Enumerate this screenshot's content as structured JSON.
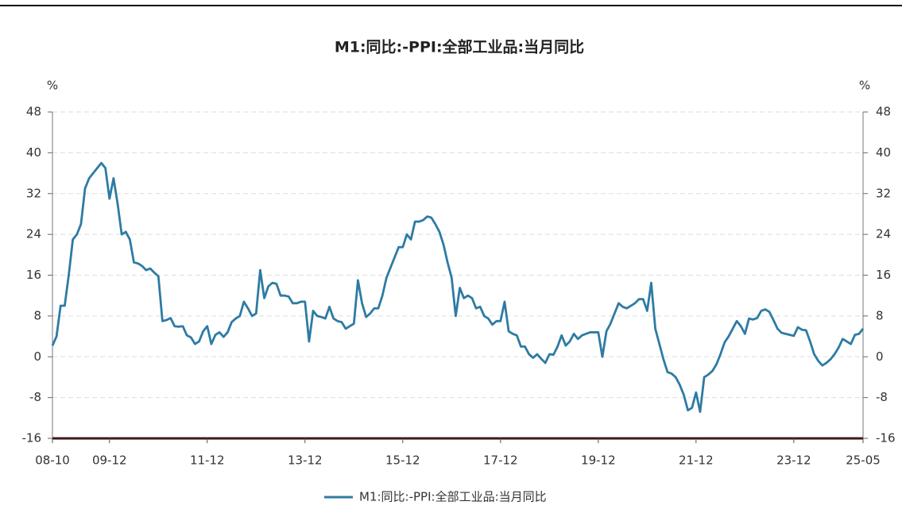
{
  "chart_data": {
    "type": "line",
    "title": "M1:同比:-PPI:全部工业品:当月同比",
    "y_label": "%",
    "y2_label": "%",
    "categories": [
      "08-10",
      null,
      null,
      null,
      null,
      null,
      null,
      null,
      null,
      null,
      null,
      null,
      null,
      null,
      "09-12",
      null,
      null,
      null,
      null,
      null,
      null,
      null,
      null,
      null,
      null,
      null,
      null,
      null,
      null,
      null,
      null,
      null,
      null,
      null,
      null,
      null,
      null,
      null,
      "11-12",
      null,
      null,
      null,
      null,
      null,
      null,
      null,
      null,
      null,
      null,
      null,
      null,
      null,
      null,
      null,
      null,
      null,
      null,
      null,
      null,
      null,
      null,
      null,
      "13-12",
      null,
      null,
      null,
      null,
      null,
      null,
      null,
      null,
      null,
      null,
      null,
      null,
      null,
      null,
      null,
      null,
      null,
      null,
      null,
      null,
      null,
      null,
      null,
      "15-12",
      null,
      null,
      null,
      null,
      null,
      null,
      null,
      null,
      null,
      null,
      null,
      null,
      null,
      null,
      null,
      null,
      null,
      null,
      null,
      null,
      null,
      null,
      null,
      "17-12",
      null,
      null,
      null,
      null,
      null,
      null,
      null,
      null,
      null,
      null,
      null,
      null,
      null,
      null,
      null,
      null,
      null,
      null,
      null,
      null,
      null,
      null,
      null,
      "19-12",
      null,
      null,
      null,
      null,
      null,
      null,
      null,
      null,
      null,
      null,
      null,
      null,
      null,
      null,
      null,
      null,
      null,
      null,
      null,
      null,
      null,
      null,
      null,
      "21-12",
      null,
      null,
      null,
      null,
      null,
      null,
      null,
      null,
      null,
      null,
      null,
      null,
      null,
      null,
      null,
      null,
      null,
      null,
      null,
      null,
      null,
      null,
      null,
      "23-12",
      null,
      null,
      null,
      null,
      null,
      null,
      null,
      null,
      null,
      null,
      null,
      null,
      null,
      null,
      null,
      null,
      "25-05"
    ],
    "series": [
      {
        "name": "M1:同比:-PPI:全部工业品:当月同比",
        "color": "#2d7ba3",
        "values": [
          2.2,
          4,
          10,
          10,
          16,
          23,
          24,
          26,
          33,
          35,
          36,
          37,
          38,
          37,
          31,
          35,
          30,
          24,
          24.5,
          23,
          18.5,
          18.3,
          17.8,
          17,
          17.3,
          16.5,
          15.8,
          7,
          7.2,
          7.6,
          6,
          5.9,
          6,
          4.2,
          3.8,
          2.5,
          3,
          5,
          6,
          2.5,
          4.3,
          4.8,
          3.9,
          4.8,
          6.8,
          7.5,
          8,
          10.8,
          9.5,
          8,
          8.5,
          17,
          11.5,
          13.8,
          14.5,
          14.3,
          12,
          12,
          11.8,
          10.5,
          10.5,
          10.8,
          10.8,
          3,
          9,
          8,
          7.8,
          7.5,
          9.8,
          7.5,
          7,
          6.8,
          5.5,
          6,
          6.5,
          15,
          10.5,
          7.8,
          8.5,
          9.5,
          9.5,
          12,
          15.5,
          17.5,
          19.5,
          21.5,
          21.5,
          24,
          23,
          26.5,
          26.5,
          26.8,
          27.5,
          27.3,
          26,
          24.5,
          22,
          18.5,
          15.5,
          8,
          13.5,
          11.5,
          12,
          11.5,
          9.5,
          9.8,
          8,
          7.5,
          6.3,
          7,
          7,
          10.8,
          5,
          4.5,
          4.2,
          2,
          2,
          0.5,
          -0.2,
          0.5,
          -0.4,
          -1.2,
          0.5,
          0.4,
          2,
          4.2,
          2.2,
          3,
          4.5,
          3.5,
          4.2,
          4.5,
          4.8,
          4.8,
          4.8,
          0,
          5,
          6.5,
          8.5,
          10.5,
          9.8,
          9.5,
          10,
          10.5,
          11.3,
          11.3,
          9,
          14.5,
          5.5,
          2.5,
          -0.5,
          -3,
          -3.3,
          -4,
          -5.5,
          -7.5,
          -10.5,
          -10,
          -7,
          -10.8,
          -4,
          -3.5,
          -2.8,
          -1.5,
          0.5,
          2.8,
          4,
          5.5,
          7,
          6,
          4.5,
          7.5,
          7.3,
          7.6,
          9,
          9.3,
          8.8,
          7.2,
          5.5,
          4.7,
          4.5,
          4.3,
          4.1,
          5.8,
          5.3,
          5.2,
          3,
          0.5,
          -0.8,
          -1.7,
          -1.2,
          -0.5,
          0.5,
          1.8,
          3.5,
          3,
          2.5,
          4.3,
          4.5,
          5.5
        ]
      }
    ],
    "ylim": [
      -16,
      48
    ],
    "yticks": [
      -16,
      -8,
      0,
      8,
      16,
      24,
      32,
      40,
      48
    ],
    "y2lim": [
      -16,
      48
    ],
    "y2ticks": [
      -16,
      -8,
      0,
      8,
      16,
      24,
      32,
      40,
      48
    ],
    "grid": true,
    "legend": "bottom"
  }
}
